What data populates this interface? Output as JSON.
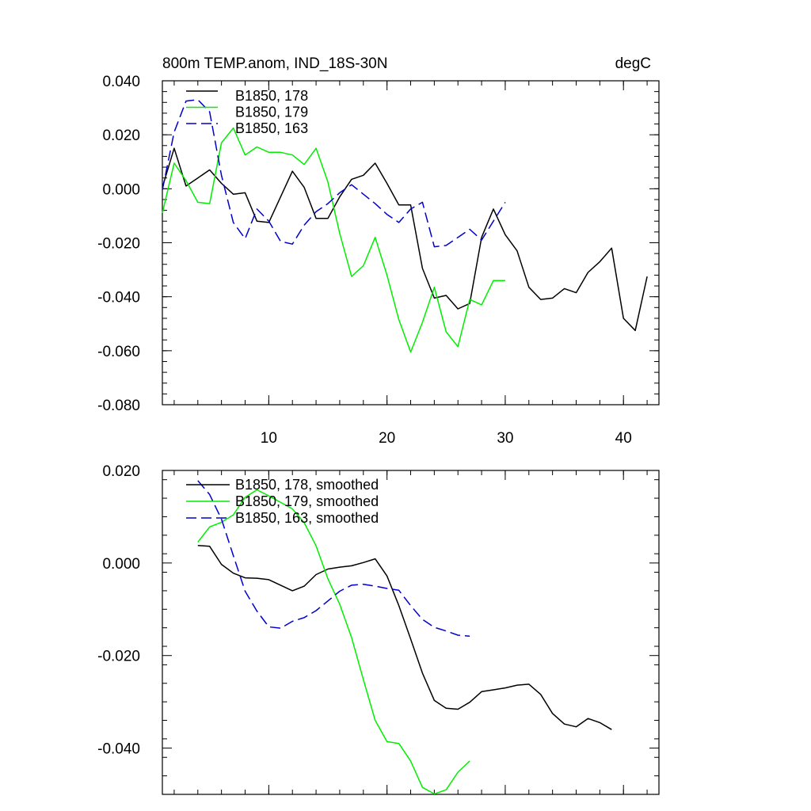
{
  "chart_data": [
    {
      "type": "line",
      "title": "800m TEMP.anom, IND_18S-30N",
      "units": "degC",
      "xlim": [
        1,
        43
      ],
      "ylim": [
        -0.08,
        0.04
      ],
      "xticks": [
        10,
        20,
        30,
        40
      ],
      "yticks": [
        0.04,
        0.02,
        0.0,
        -0.02,
        -0.04,
        -0.06,
        -0.08
      ],
      "ytick_labels": [
        "0.040",
        "0.020",
        "0.000",
        "-0.020",
        "-0.040",
        "-0.060",
        "-0.080"
      ],
      "xtick_labels": [
        "10",
        "20",
        "30",
        "40"
      ],
      "legend_position": "top-left",
      "series": [
        {
          "name": "B1850, 178",
          "color": "#000000",
          "dash": "solid",
          "x": [
            1,
            2,
            3,
            4,
            5,
            6,
            7,
            8,
            9,
            10,
            11,
            12,
            13,
            14,
            15,
            16,
            17,
            18,
            19,
            20,
            21,
            22,
            23,
            24,
            25,
            26,
            27,
            28,
            29,
            30,
            31,
            32,
            33,
            34,
            35,
            36,
            37,
            38,
            39,
            40,
            41,
            42
          ],
          "y": [
            0.0005,
            0.015,
            0.001,
            0.004,
            0.007,
            0.002,
            -0.002,
            -0.0015,
            -0.012,
            -0.0125,
            -0.003,
            0.0065,
            0.0005,
            -0.011,
            -0.011,
            -0.003,
            0.0035,
            0.005,
            0.0095,
            0.002,
            -0.006,
            -0.006,
            -0.0295,
            -0.0405,
            -0.0395,
            -0.0445,
            -0.0425,
            -0.018,
            -0.0075,
            -0.017,
            -0.023,
            -0.0365,
            -0.041,
            -0.0405,
            -0.037,
            -0.0385,
            -0.031,
            -0.027,
            -0.022,
            -0.048,
            -0.0525,
            -0.0325
          ]
        },
        {
          "name": "B1850, 179",
          "color": "#00ee00",
          "dash": "solid",
          "x": [
            1,
            2,
            3,
            4,
            5,
            6,
            7,
            8,
            9,
            10,
            11,
            12,
            13,
            14,
            15,
            16,
            17,
            18,
            19,
            20,
            21,
            22,
            23,
            24,
            25,
            26,
            27,
            28,
            29,
            30
          ],
          "y": [
            -0.009,
            0.0095,
            0.003,
            -0.005,
            -0.0055,
            0.017,
            0.0225,
            0.0125,
            0.0155,
            0.0135,
            0.0135,
            0.0125,
            0.009,
            0.015,
            0.0025,
            -0.0165,
            -0.0325,
            -0.0285,
            -0.018,
            -0.032,
            -0.0485,
            -0.0605,
            -0.0495,
            -0.0365,
            -0.053,
            -0.0585,
            -0.041,
            -0.043,
            -0.034,
            -0.034
          ]
        },
        {
          "name": "B1850, 163",
          "color": "#0000cc",
          "dash": "dashed",
          "x": [
            1,
            2,
            3,
            4,
            5,
            6,
            7,
            8,
            9,
            10,
            11,
            12,
            13,
            14,
            15,
            16,
            17,
            18,
            19,
            20,
            21,
            22,
            23,
            24,
            25,
            26,
            27,
            28,
            29,
            30
          ],
          "y": [
            -0.0005,
            0.021,
            0.0325,
            0.033,
            0.0285,
            0.005,
            -0.0125,
            -0.0185,
            -0.0075,
            -0.012,
            -0.0195,
            -0.0205,
            -0.0135,
            -0.0085,
            -0.0055,
            -0.0015,
            0.0015,
            -0.002,
            -0.0055,
            -0.0095,
            -0.0125,
            -0.0075,
            -0.005,
            -0.0215,
            -0.021,
            -0.018,
            -0.015,
            -0.019,
            -0.012,
            -0.005
          ]
        }
      ]
    },
    {
      "type": "line",
      "title": "",
      "xlim": [
        1,
        43
      ],
      "ylim": [
        -0.05,
        0.02
      ],
      "xticks": [
        10,
        20,
        30,
        40
      ],
      "yticks": [
        0.02,
        0.0,
        -0.02,
        -0.04
      ],
      "ytick_labels": [
        "0.020",
        "0.000",
        "-0.020",
        "-0.040"
      ],
      "legend_position": "top-left",
      "series": [
        {
          "name": "B1850, 178, smoothed",
          "color": "#000000",
          "dash": "solid",
          "x": [
            4,
            5,
            6,
            7,
            8,
            9,
            10,
            11,
            12,
            13,
            14,
            15,
            16,
            17,
            18,
            19,
            20,
            21,
            22,
            23,
            24,
            25,
            26,
            27,
            28,
            29,
            30,
            31,
            32,
            33,
            34,
            35,
            36,
            37,
            38,
            39
          ],
          "y": [
            0.0038,
            0.0036,
            -0.0003,
            -0.0022,
            -0.0032,
            -0.0033,
            -0.0036,
            -0.0048,
            -0.006,
            -0.005,
            -0.0025,
            -0.0013,
            -0.0009,
            -0.0006,
            0.0001,
            0.0009,
            -0.0028,
            -0.0092,
            -0.0164,
            -0.0238,
            -0.0297,
            -0.0314,
            -0.0316,
            -0.0301,
            -0.0278,
            -0.0274,
            -0.027,
            -0.0264,
            -0.0262,
            -0.0284,
            -0.0325,
            -0.0348,
            -0.0354,
            -0.0336,
            -0.0345,
            -0.036
          ]
        },
        {
          "name": "B1850, 179, smoothed",
          "color": "#00ee00",
          "dash": "solid",
          "x": [
            4,
            5,
            6,
            7,
            8,
            9,
            10,
            11,
            12,
            13,
            14,
            15,
            16,
            17,
            18,
            19,
            20,
            21,
            22,
            23,
            24,
            25,
            26,
            27
          ],
          "y": [
            0.0045,
            0.0078,
            0.0088,
            0.0104,
            0.0142,
            0.0158,
            0.0145,
            0.0131,
            0.0117,
            0.0087,
            0.0037,
            -0.0034,
            -0.0089,
            -0.0161,
            -0.0252,
            -0.034,
            -0.0386,
            -0.039,
            -0.0428,
            -0.0485,
            -0.0499,
            -0.049,
            -0.0452,
            -0.0428
          ]
        },
        {
          "name": "B1850, 163, smoothed",
          "color": "#0000cc",
          "dash": "dashed",
          "x": [
            4,
            5,
            6,
            7,
            8,
            9,
            10,
            11,
            12,
            13,
            14,
            15,
            16,
            17,
            18,
            19,
            20,
            21,
            22,
            23,
            24,
            25,
            26,
            27
          ],
          "y": [
            0.0178,
            0.0148,
            0.0095,
            0.0016,
            -0.0061,
            -0.0104,
            -0.0138,
            -0.0141,
            -0.0126,
            -0.0118,
            -0.0103,
            -0.0082,
            -0.0061,
            -0.0048,
            -0.0046,
            -0.005,
            -0.0055,
            -0.0059,
            -0.0092,
            -0.0122,
            -0.0139,
            -0.0147,
            -0.0156,
            -0.0158
          ]
        }
      ]
    }
  ]
}
